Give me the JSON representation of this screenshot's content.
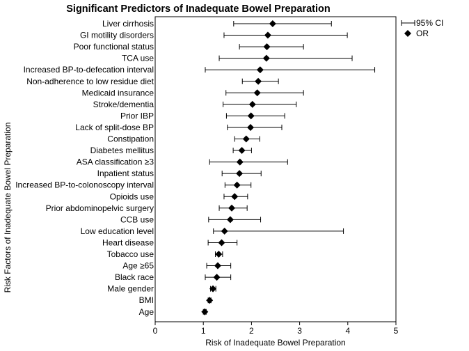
{
  "chart_data": {
    "type": "forest",
    "title": "Significant Predictors of Inadequate Bowel Preparation",
    "xlabel": "Risk of Inadequate Bowel Preparation",
    "ylabel": "Risk Factors of Inadequate Bowel Preparation",
    "xlim": [
      0,
      5
    ],
    "xticks": [
      "0",
      "1",
      "2",
      "3",
      "4",
      "5"
    ],
    "grid": false,
    "legend": {
      "placement": "top-right",
      "entries": [
        {
          "label": "95% CI",
          "symbol": "error-bar"
        },
        {
          "label": "OR",
          "symbol": "diamond"
        }
      ]
    },
    "rows": [
      {
        "label": "Liver cirrhosis",
        "or": 2.44,
        "lo": 1.63,
        "hi": 3.66
      },
      {
        "label": "GI motility disorders",
        "or": 2.34,
        "lo": 1.43,
        "hi": 3.99
      },
      {
        "label": "Poor functional status",
        "or": 2.32,
        "lo": 1.75,
        "hi": 3.08
      },
      {
        "label": "TCA use",
        "or": 2.31,
        "lo": 1.33,
        "hi": 4.09
      },
      {
        "label": "Increased BP-to-defecation interval",
        "or": 2.18,
        "lo": 1.04,
        "hi": 4.56
      },
      {
        "label": "Non-adherence to low residue diet",
        "or": 2.14,
        "lo": 1.81,
        "hi": 2.56
      },
      {
        "label": "Medicaid insurance",
        "or": 2.12,
        "lo": 1.47,
        "hi": 3.08
      },
      {
        "label": "Stroke/dementia",
        "or": 2.02,
        "lo": 1.41,
        "hi": 2.93
      },
      {
        "label": "Prior IBP",
        "or": 1.99,
        "lo": 1.48,
        "hi": 2.69
      },
      {
        "label": "Lack of split-dose BP",
        "or": 1.98,
        "lo": 1.5,
        "hi": 2.63
      },
      {
        "label": "Constipation",
        "or": 1.89,
        "lo": 1.65,
        "hi": 2.17
      },
      {
        "label": "Diabetes mellitus",
        "or": 1.8,
        "lo": 1.62,
        "hi": 2.0
      },
      {
        "label": "ASA classification  ≥3",
        "or": 1.76,
        "lo": 1.13,
        "hi": 2.75
      },
      {
        "label": "Inpatient status",
        "or": 1.75,
        "lo": 1.39,
        "hi": 2.2
      },
      {
        "label": "Increased BP-to-colonoscopy interval",
        "or": 1.7,
        "lo": 1.45,
        "hi": 1.99
      },
      {
        "label": "Opioids use",
        "or": 1.65,
        "lo": 1.43,
        "hi": 1.92
      },
      {
        "label": "Prior abdominopelvic surgery",
        "or": 1.59,
        "lo": 1.33,
        "hi": 1.91
      },
      {
        "label": "CCB use",
        "or": 1.56,
        "lo": 1.11,
        "hi": 2.19
      },
      {
        "label": "Low education level",
        "or": 1.44,
        "lo": 1.21,
        "hi": 3.91
      },
      {
        "label": "Heart disease",
        "or": 1.38,
        "lo": 1.1,
        "hi": 1.7
      },
      {
        "label": "Tobacco use",
        "or": 1.32,
        "lo": 1.25,
        "hi": 1.4
      },
      {
        "label": "Age ≥65",
        "or": 1.3,
        "lo": 1.07,
        "hi": 1.57
      },
      {
        "label": "Black race",
        "or": 1.28,
        "lo": 1.04,
        "hi": 1.57
      },
      {
        "label": "Male gender",
        "or": 1.2,
        "lo": 1.15,
        "hi": 1.26
      },
      {
        "label": "BMI",
        "or": 1.13,
        "lo": 1.1,
        "hi": 1.16
      },
      {
        "label": "Age",
        "or": 1.03,
        "lo": 1.0,
        "hi": 1.06
      }
    ]
  }
}
